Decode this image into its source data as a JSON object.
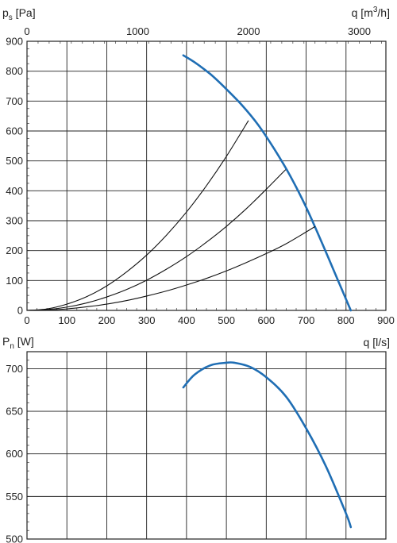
{
  "chart_data": [
    {
      "type": "line",
      "y_axis_label": {
        "main": "p",
        "sub": "s",
        "rest": " [Pa]"
      },
      "x_axis_label": "q [l/s]",
      "x2_axis_label": {
        "main": "q [m",
        "sup": "3",
        "rest": "/h]"
      },
      "xlim": [
        0,
        900
      ],
      "ylim": [
        0,
        900
      ],
      "x2lim": [
        0,
        3240
      ],
      "x_ticks": [
        0,
        100,
        200,
        300,
        400,
        500,
        600,
        700,
        800,
        900
      ],
      "x_tick_labels": [
        "0",
        "100",
        "200",
        "300",
        "400",
        "500",
        "600",
        "700",
        "800",
        "900"
      ],
      "y_ticks": [
        0,
        100,
        200,
        300,
        400,
        500,
        600,
        700,
        800,
        900
      ],
      "y_tick_labels": [
        "0",
        "100",
        "200",
        "300",
        "400",
        "500",
        "600",
        "700",
        "800",
        "900"
      ],
      "x2_ticks": [
        0,
        1000,
        2000,
        3000
      ],
      "x2_tick_labels": [
        "0",
        "1000",
        "2000",
        "3000"
      ],
      "grid": true,
      "series": [
        {
          "role": "fan-curve",
          "color": "#1f6eb4",
          "x": [
            392,
            420,
            460,
            500,
            540,
            580,
            620,
            660,
            700,
            740,
            780,
            812
          ],
          "y": [
            853,
            830,
            790,
            740,
            685,
            620,
            540,
            450,
            345,
            225,
            100,
            0
          ]
        },
        {
          "role": "system-curve",
          "color": "#111111",
          "x": [
            0,
            50,
            100,
            150,
            200,
            250,
            300,
            350,
            400,
            450,
            500,
            555
          ],
          "y": [
            0,
            5,
            21,
            46,
            82,
            129,
            185,
            252,
            329,
            417,
            515,
            634
          ]
        },
        {
          "role": "system-curve",
          "color": "#111111",
          "x": [
            0,
            50,
            100,
            150,
            200,
            250,
            300,
            350,
            400,
            450,
            500,
            550,
            600,
            648
          ],
          "y": [
            0,
            3,
            11,
            25,
            45,
            70,
            101,
            138,
            180,
            228,
            281,
            340,
            405,
            470
          ]
        },
        {
          "role": "system-curve",
          "color": "#111111",
          "x": [
            0,
            50,
            100,
            150,
            200,
            250,
            300,
            350,
            400,
            450,
            500,
            550,
            600,
            650,
            722
          ],
          "y": [
            0,
            1,
            5,
            12,
            21,
            33,
            48,
            65,
            85,
            107,
            132,
            160,
            190,
            223,
            280
          ]
        }
      ]
    },
    {
      "type": "line",
      "y_axis_label": {
        "main": "P",
        "sub": "n",
        "rest": " [W]"
      },
      "xlim": [
        0,
        900
      ],
      "ylim": [
        500,
        720
      ],
      "x_ticks": [
        0,
        100,
        200,
        300,
        400,
        500,
        600,
        700,
        800,
        900
      ],
      "y_ticks": [
        500,
        550,
        600,
        650,
        700
      ],
      "y_tick_labels": [
        "500",
        "550",
        "600",
        "650",
        "700"
      ],
      "grid": true,
      "series": [
        {
          "role": "power-curve",
          "color": "#1f6eb4",
          "x": [
            392,
            420,
            460,
            500,
            520,
            560,
            600,
            650,
            700,
            750,
            800,
            812
          ],
          "y": [
            678,
            693,
            704,
            707,
            707,
            702,
            690,
            667,
            630,
            585,
            530,
            514
          ]
        }
      ]
    }
  ]
}
